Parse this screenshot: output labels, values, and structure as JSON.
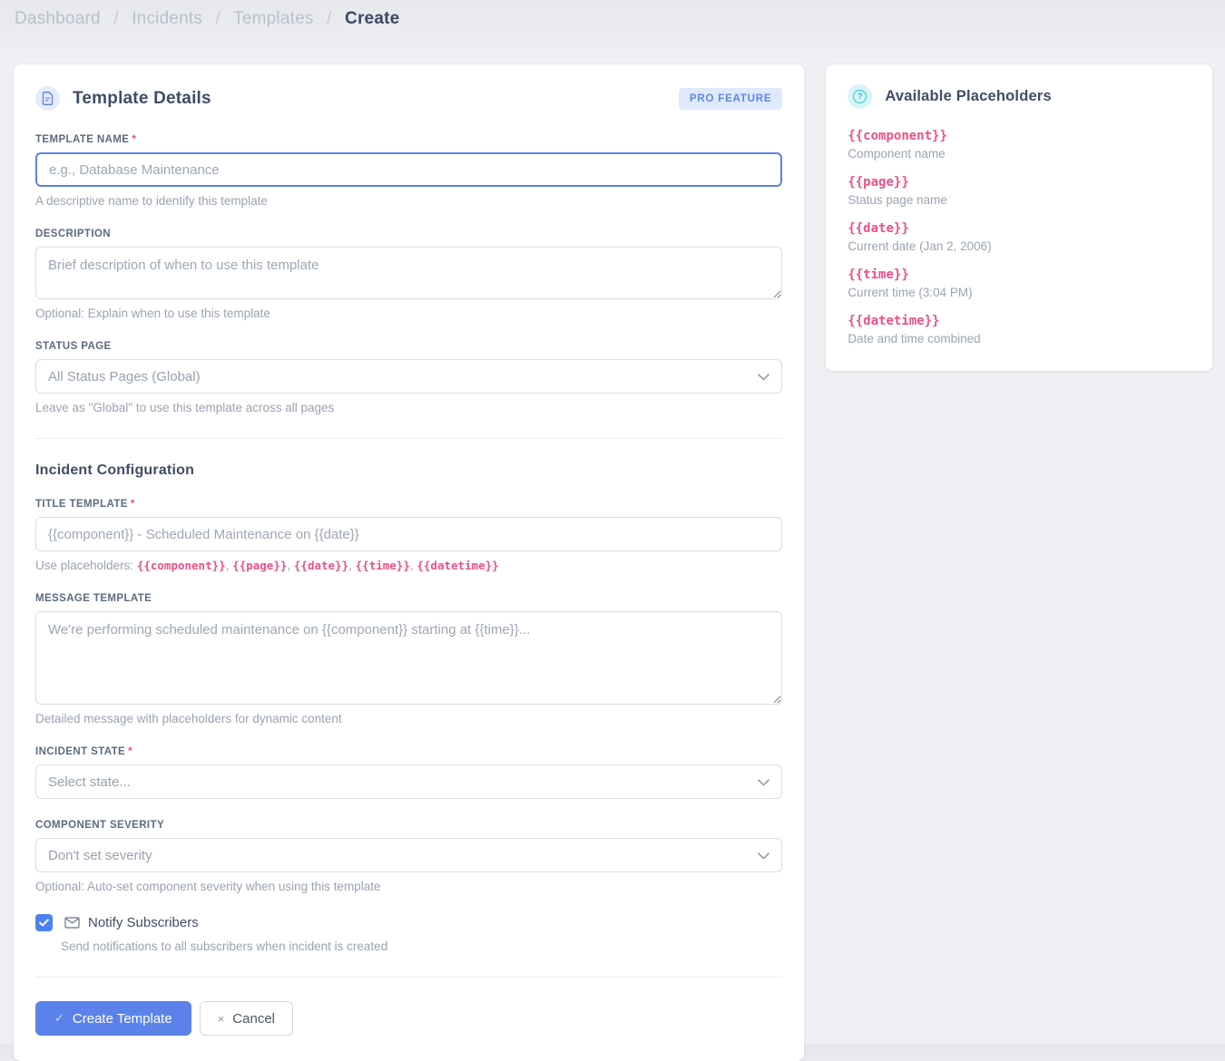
{
  "breadcrumb": {
    "separator": "/",
    "items": [
      {
        "label": "Dashboard"
      },
      {
        "label": "Incidents"
      },
      {
        "label": "Templates"
      },
      {
        "label": "Create"
      }
    ]
  },
  "icons": {
    "check": "✓",
    "close": "×",
    "question": "?"
  },
  "ui": {
    "required_marker": "*",
    "accent_blue": "#5b82e8",
    "placeholder_pink": "#ed4f86",
    "help_teal": "#2bc4d4"
  },
  "form_card": {
    "title": "Template Details",
    "badge": "PRO FEATURE",
    "fields": {
      "template_name": {
        "label": "Template Name",
        "placeholder": "e.g., Database Maintenance",
        "helper": "A descriptive name to identify this template"
      },
      "description": {
        "label": "Description",
        "placeholder": "Brief description of when to use this template",
        "helper": "Optional: Explain when to use this template"
      },
      "status_page": {
        "label": "Status Page",
        "value": "All Status Pages (Global)",
        "helper": "Leave as \"Global\" to use this template across all pages"
      }
    },
    "section_heading": "Incident Configuration",
    "incident_fields": {
      "title_template": {
        "label": "Title Template",
        "placeholder": "{{component}} - Scheduled Maintenance on {{date}}",
        "helper_prefix": "Use placeholders: ",
        "helper_codes": [
          "{{component}}",
          "{{page}}",
          "{{date}}",
          "{{time}}",
          "{{datetime}}"
        ],
        "helper_separator": ", "
      },
      "message_template": {
        "label": "Message Template",
        "placeholder": "We're performing scheduled maintenance on {{component}} starting at {{time}}...",
        "helper": "Detailed message with placeholders for dynamic content"
      },
      "incident_state": {
        "label": "Incident State",
        "value": "Select state..."
      },
      "component_severity": {
        "label": "Component Severity",
        "value": "Don't set severity",
        "helper": "Optional: Auto-set component severity when using this template"
      },
      "notify_subscribers": {
        "label": "Notify Subscribers",
        "checked": true,
        "helper": "Send notifications to all subscribers when incident is created"
      }
    },
    "actions": {
      "create_label": "Create Template",
      "cancel_label": "Cancel"
    }
  },
  "placeholders_card": {
    "title": "Available Placeholders",
    "items": [
      {
        "code": "{{component}}",
        "description": "Component name"
      },
      {
        "code": "{{page}}",
        "description": "Status page name"
      },
      {
        "code": "{{date}}",
        "description": "Current date (Jan 2, 2006)"
      },
      {
        "code": "{{time}}",
        "description": "Current time (3:04 PM)"
      },
      {
        "code": "{{datetime}}",
        "description": "Date and time combined"
      }
    ]
  }
}
